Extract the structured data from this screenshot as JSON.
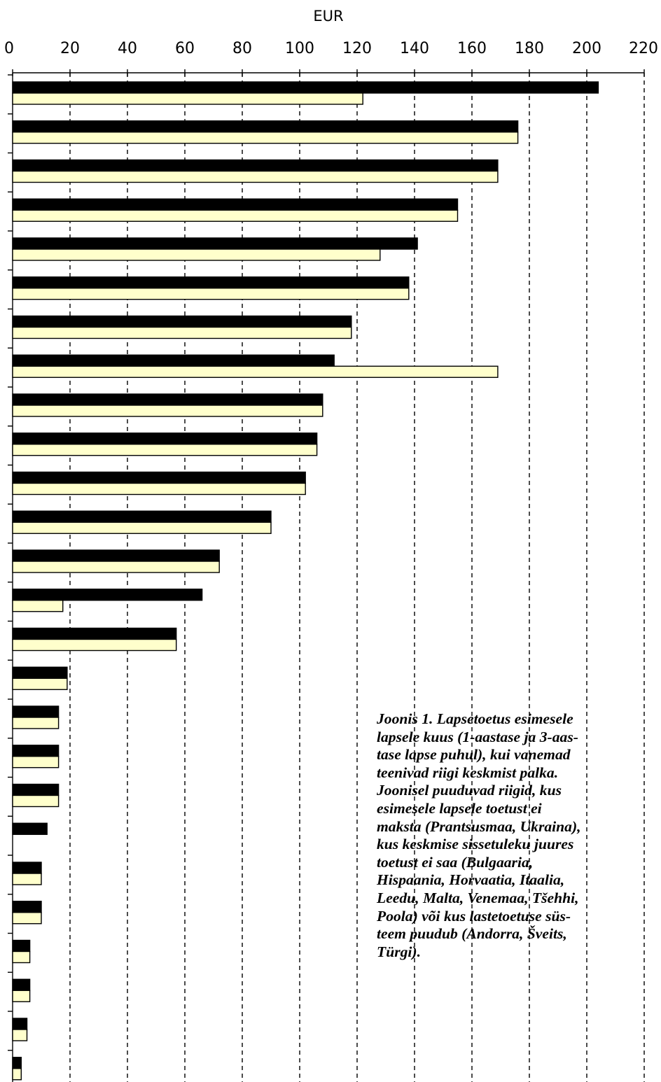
{
  "chart_data": {
    "type": "bar",
    "orientation": "horizontal",
    "xlabel": "EUR",
    "xlim": [
      0,
      220
    ],
    "ticks": [
      0,
      20,
      40,
      60,
      80,
      100,
      120,
      140,
      160,
      180,
      200,
      220
    ],
    "grid": true,
    "category_labels_shown": false,
    "series": [
      {
        "color": "#000000",
        "values": [
          204,
          176,
          169,
          155,
          141,
          138,
          118,
          112,
          108,
          106,
          102,
          90,
          72,
          66,
          57,
          19,
          16,
          16,
          16,
          12,
          10,
          10,
          6,
          6,
          5,
          3
        ]
      },
      {
        "color": "#ffffcc",
        "values": [
          122,
          176,
          169,
          155,
          128,
          138,
          118,
          169,
          108,
          106,
          102,
          90,
          72,
          17.5,
          57,
          19,
          16,
          16,
          16,
          0,
          10,
          10,
          6,
          6,
          5,
          3
        ]
      }
    ]
  },
  "caption": {
    "lines": [
      "Joonis 1. Lapsetoetus esimesele",
      "lapsele kuus (1-aastase ja 3-aas-",
      "tase lapse puhul), kui vanemad",
      "teenivad riigi keskmist palka.",
      "Joonisel puuduvad riigid, kus",
      "esimesele lapsele toetust ei",
      "maksta (Prantsusmaa, Ukraina),",
      "kus keskmise sissetuleku juures",
      "toetust ei saa (Bulgaaria,",
      "Hispaania, Horvaatia, Itaalia,",
      "Leedu, Malta, Venemaa, Tšehhi,",
      "Poola) või kus lastetoetuse süs-",
      "teem puudub (Andorra, Šveits,",
      "Türgi)."
    ]
  }
}
